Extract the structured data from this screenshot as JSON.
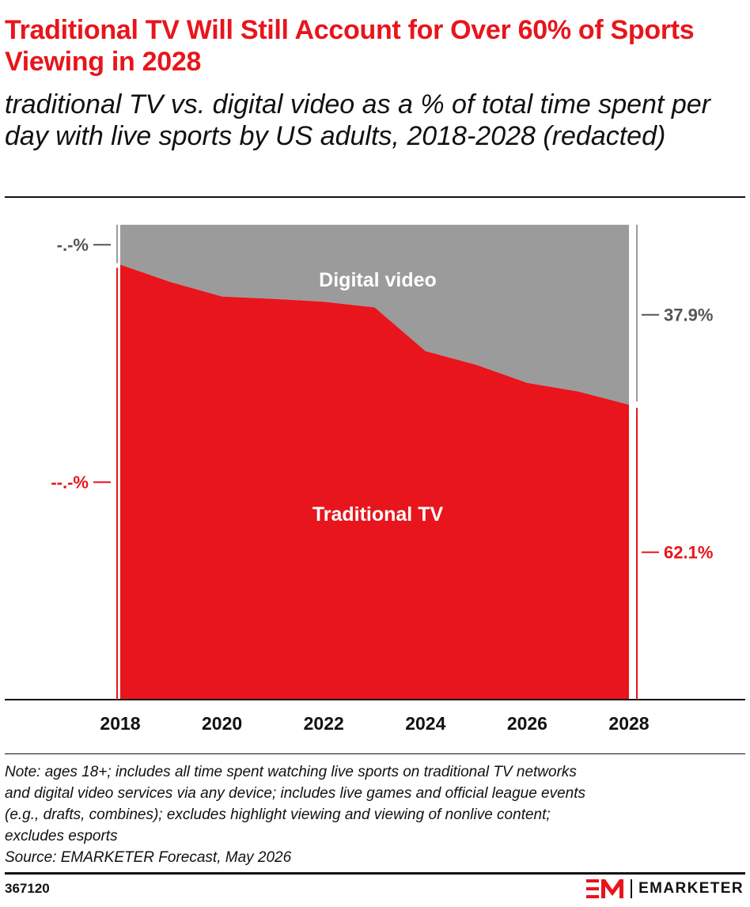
{
  "title": "Traditional TV Will Still Account for Over 60% of Sports Viewing in 2028",
  "subtitle": "traditional TV vs. digital video as a % of total time spent per day with live sports by US adults, 2018-2028 (redacted)",
  "chart_data": {
    "type": "area",
    "stacked": true,
    "x": [
      2018,
      2019,
      2020,
      2021,
      2022,
      2023,
      2024,
      2025,
      2026,
      2027,
      2028
    ],
    "xticks": [
      "2018",
      "2020",
      "2022",
      "2024",
      "2026",
      "2028"
    ],
    "ylim": [
      0,
      100
    ],
    "grid": false,
    "legend": "inline labels",
    "series": [
      {
        "name": "Traditional TV",
        "color": "#e8151c",
        "values": [
          91.6,
          87.9,
          84.9,
          84.4,
          83.8,
          82.6,
          73.4,
          70.5,
          66.7,
          64.9,
          62.1
        ]
      },
      {
        "name": "Digital video",
        "color": "#9b9b9b",
        "values": [
          8.4,
          12.1,
          15.1,
          15.6,
          16.2,
          17.4,
          26.6,
          29.5,
          33.3,
          35.1,
          37.9
        ]
      }
    ],
    "start_labels": {
      "Digital video": "-.-%",
      "Traditional TV": "--.-%"
    },
    "end_labels": {
      "Digital video": "37.9%",
      "Traditional TV": "62.1%"
    }
  },
  "note": "Note: ages 18+; includes all time spent watching live sports on traditional TV networks\nand digital video services via any device; includes live games and official league events\n(e.g., drafts, combines); excludes highlight viewing and viewing of nonlive content;\nexcludes esports",
  "source": "Source: EMARKETER Forecast, May 2026",
  "chart_id": "367120",
  "brand": "EMARKETER",
  "colors": {
    "accent": "#e8151c",
    "digital": "#9b9b9b",
    "text": "#111111",
    "grey_text": "#555555"
  }
}
